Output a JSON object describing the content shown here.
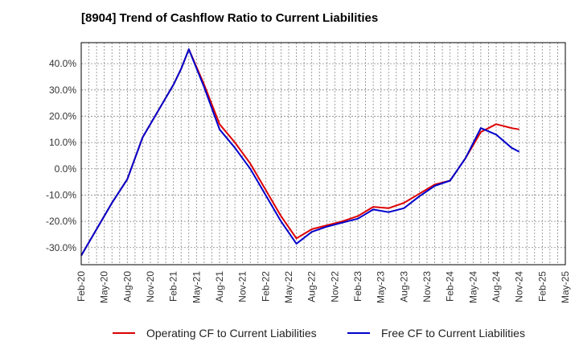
{
  "title": "[8904]  Trend of Cashflow Ratio to Current Liabilities",
  "chart_data": {
    "type": "line",
    "title": "[8904]  Trend of Cashflow Ratio to Current Liabilities",
    "xlabel": "",
    "ylabel": "",
    "x_ticks": [
      "Feb-20",
      "May-20",
      "Aug-20",
      "Nov-20",
      "Feb-21",
      "May-21",
      "Aug-21",
      "Nov-21",
      "Feb-22",
      "May-22",
      "Aug-22",
      "Nov-22",
      "Feb-23",
      "May-23",
      "Aug-23",
      "Nov-23",
      "Feb-24",
      "May-24",
      "Aug-24",
      "Nov-24",
      "Feb-25",
      "May-25"
    ],
    "y_ticks": [
      "40.0%",
      "30.0%",
      "20.0%",
      "10.0%",
      "0.0%",
      "-10.0%",
      "-20.0%",
      "-30.0%"
    ],
    "y_tick_values": [
      40,
      30,
      20,
      10,
      0,
      -10,
      -20,
      -30
    ],
    "ylim": [
      -36.5,
      48
    ],
    "grid": true,
    "legend_position": "bottom",
    "x_index_range": [
      0,
      63
    ],
    "series": [
      {
        "name": "Operating CF to Current Liabilities",
        "color": "#dd0000",
        "x": [
          0,
          2,
          4,
          6,
          8,
          10,
          12,
          13,
          14,
          16,
          18,
          20,
          22,
          24,
          26,
          28,
          30,
          32,
          34,
          36,
          38,
          40,
          42,
          44,
          46,
          48,
          50,
          52,
          54,
          56,
          57
        ],
        "y": [
          -33,
          -23,
          -13,
          -4,
          12,
          22,
          32,
          38,
          45.5,
          32,
          17,
          10,
          2,
          -8,
          -18,
          -26.5,
          -23,
          -21.5,
          -20,
          -18,
          -14.5,
          -15,
          -13,
          -9.5,
          -6,
          -4.5,
          4,
          14,
          17,
          15.5,
          15
        ]
      },
      {
        "name": "Free CF to Current Liabilities",
        "color": "#0000cc",
        "x": [
          0,
          2,
          4,
          6,
          8,
          10,
          12,
          13,
          14,
          16,
          18,
          20,
          22,
          24,
          26,
          28,
          30,
          32,
          34,
          36,
          38,
          40,
          42,
          44,
          46,
          48,
          50,
          52,
          54,
          56,
          57
        ],
        "y": [
          -33,
          -23,
          -13,
          -4,
          12,
          22,
          32,
          38,
          45.5,
          31,
          15,
          8,
          0,
          -10,
          -20,
          -28.5,
          -24,
          -22,
          -20.5,
          -19,
          -15.5,
          -16.5,
          -15,
          -10.5,
          -6.5,
          -4.5,
          4,
          15.5,
          13,
          8,
          6.5
        ]
      }
    ]
  }
}
